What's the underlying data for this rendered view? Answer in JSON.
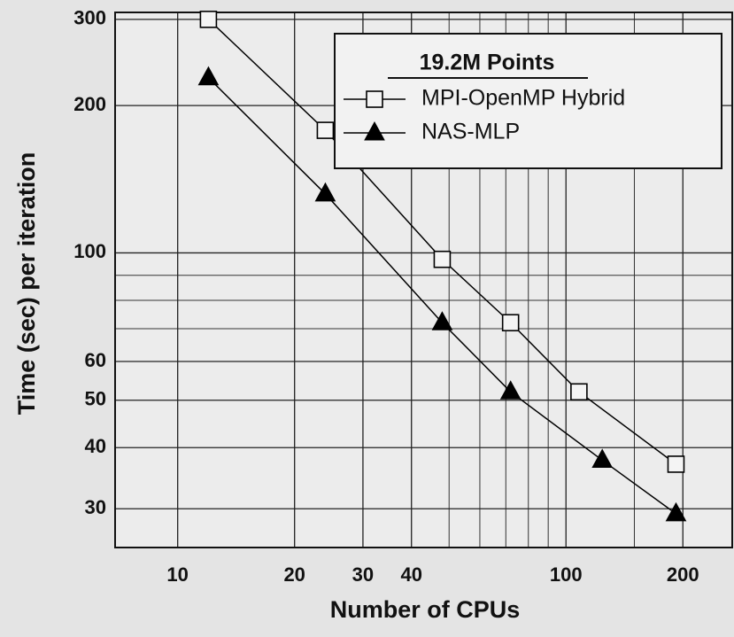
{
  "chart_data": {
    "type": "line",
    "x_label": "Number of CPUs",
    "y_label": "Time (sec) per iteration",
    "legend_title": "19.2M Points",
    "legend": "upper right",
    "xscale": "log",
    "yscale": "log",
    "grid": true,
    "xlim": [
      6.9,
      268
    ],
    "ylim": [
      25,
      310
    ],
    "xticks": [
      10,
      20,
      30,
      40,
      100,
      200
    ],
    "xminor": [
      50,
      60,
      70,
      80,
      90,
      150
    ],
    "yticks": [
      30,
      40,
      50,
      60,
      100,
      200,
      300
    ],
    "yminor": [
      70,
      80,
      90
    ],
    "series": [
      {
        "name": "MPI-OpenMP Hybrid",
        "color": "#000000",
        "marker": "square",
        "x": [
          12,
          24,
          48,
          72,
          108,
          192
        ],
        "values": [
          300,
          178,
          97,
          72,
          52,
          37
        ]
      },
      {
        "name": "NAS-MLP",
        "color": "#000000",
        "marker": "triangle",
        "x": [
          12,
          24,
          48,
          72,
          124,
          192
        ],
        "values": [
          228,
          132,
          72,
          52,
          37.7,
          29.3
        ]
      }
    ]
  }
}
